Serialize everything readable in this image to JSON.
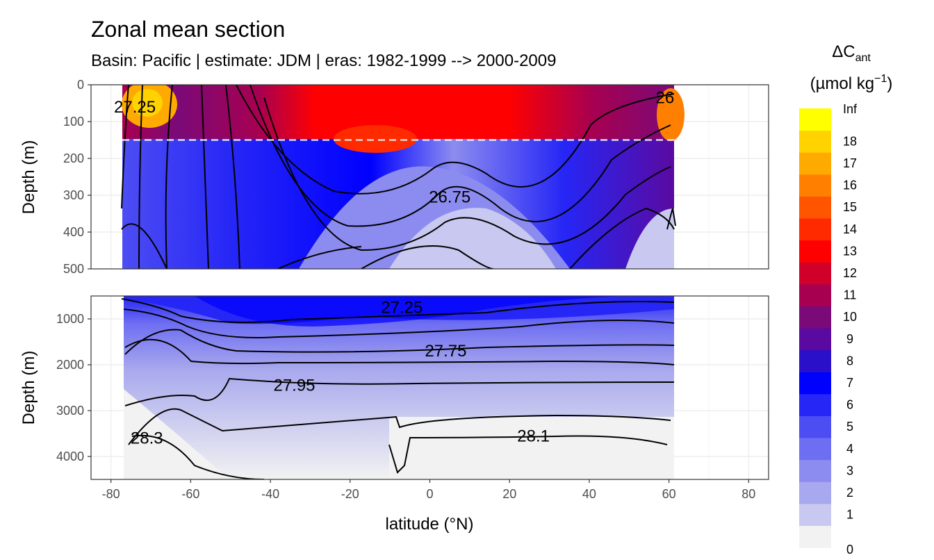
{
  "chart_data": {
    "type": "heatmap",
    "title": "Zonal mean section",
    "subtitle": "Basin: Pacific | estimate: JDM  | eras: 1982-1999 --> 2000-2009",
    "xlabel": "latitude (°N)",
    "ylabel": "Depth (m)",
    "xlim": [
      -85,
      85
    ],
    "x_ticks": [
      -80,
      -60,
      -40,
      -20,
      0,
      20,
      40,
      60,
      80
    ],
    "x_tick_labels": [
      "-80",
      "-60",
      "-40",
      "-20",
      "0",
      "20",
      "40",
      "60",
      "80"
    ],
    "panels": [
      {
        "name": "upper",
        "ylim": [
          0,
          500
        ],
        "y_ticks": [
          0,
          100,
          200,
          300,
          400,
          500
        ],
        "y_tick_labels": [
          "0",
          "100",
          "200",
          "300",
          "400",
          "500"
        ]
      },
      {
        "name": "lower",
        "ylim": [
          500,
          4500
        ],
        "y_ticks": [
          1000,
          2000,
          3000,
          4000
        ],
        "y_tick_labels": [
          "1000",
          "2000",
          "3000",
          "4000"
        ]
      }
    ],
    "reference_depth": 150,
    "legend": {
      "title_main": "ΔC",
      "title_sub": "ant",
      "unit_pre": "(µmol kg",
      "unit_sup": "−1",
      "unit_post": ")",
      "breaks": [
        "0",
        "1",
        "2",
        "3",
        "4",
        "5",
        "6",
        "7",
        "8",
        "9",
        "10",
        "11",
        "12",
        "13",
        "14",
        "15",
        "16",
        "17",
        "18",
        "Inf"
      ],
      "colors": [
        "#f2f2f2",
        "#c8c8f0",
        "#a8a8ee",
        "#8c8cf0",
        "#6e6ef2",
        "#4d4df4",
        "#2626f6",
        "#0000ff",
        "#2a10c8",
        "#5a0aa0",
        "#7a0a78",
        "#a80050",
        "#d0002a",
        "#ff0000",
        "#ff2a00",
        "#ff5500",
        "#ff8000",
        "#ffaa00",
        "#ffd200",
        "#ffff00"
      ]
    },
    "contour_labels": [
      {
        "text": "27.25",
        "lat": -74,
        "depth": 60,
        "panel": "upper"
      },
      {
        "text": "26.75",
        "lat": 5,
        "depth": 305,
        "panel": "upper"
      },
      {
        "text": "26",
        "lat": 59,
        "depth": 35,
        "panel": "upper"
      },
      {
        "text": "27.25",
        "lat": -7,
        "depth": 750,
        "panel": "lower"
      },
      {
        "text": "27.75",
        "lat": 4,
        "depth": 1700,
        "panel": "lower"
      },
      {
        "text": "27.95",
        "lat": -34,
        "depth": 2450,
        "panel": "lower"
      },
      {
        "text": "28.3",
        "lat": -71,
        "depth": 3600,
        "panel": "lower"
      },
      {
        "text": "28.1",
        "lat": 26,
        "depth": 3550,
        "panel": "lower"
      }
    ]
  }
}
